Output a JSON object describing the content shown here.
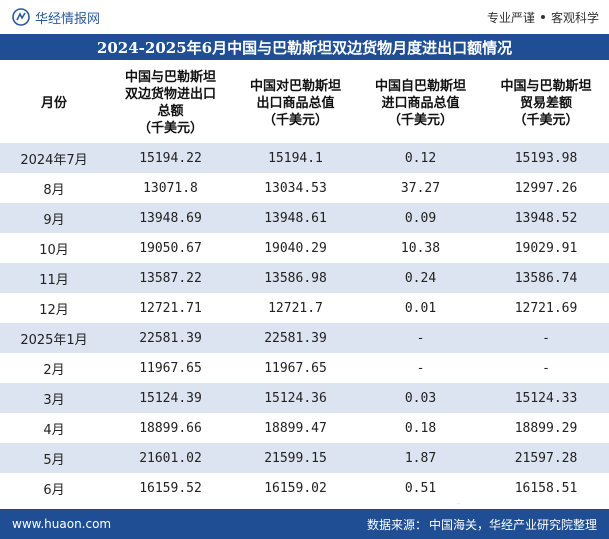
{
  "header": {
    "brand": "华经情报网",
    "slogan_left": "专业严谨",
    "slogan_right": "客观科学"
  },
  "title": "2024-2025年6月中国与巴勒斯坦双边货物月度进出口额情况",
  "table": {
    "columns": [
      "月份",
      "中国与巴勒斯坦\n双边货物进出口\n总额\n（千美元）",
      "中国对巴勒斯坦\n出口商品总值\n（千美元）",
      "中国自巴勒斯坦\n进口商品总值\n（千美元）",
      "中国与巴勒斯坦\n贸易差额\n（千美元）"
    ],
    "rows": [
      [
        "2024年7月",
        "15194.22",
        "15194.1",
        "0.12",
        "15193.98"
      ],
      [
        "8月",
        "13071.8",
        "13034.53",
        "37.27",
        "12997.26"
      ],
      [
        "9月",
        "13948.69",
        "13948.61",
        "0.09",
        "13948.52"
      ],
      [
        "10月",
        "19050.67",
        "19040.29",
        "10.38",
        "19029.91"
      ],
      [
        "11月",
        "13587.22",
        "13586.98",
        "0.24",
        "13586.74"
      ],
      [
        "12月",
        "12721.71",
        "12721.7",
        "0.01",
        "12721.69"
      ],
      [
        "2025年1月",
        "22581.39",
        "22581.39",
        "-",
        "-"
      ],
      [
        "2月",
        "11967.65",
        "11967.65",
        "-",
        "-"
      ],
      [
        "3月",
        "15124.39",
        "15124.36",
        "0.03",
        "15124.33"
      ],
      [
        "4月",
        "18899.66",
        "18899.47",
        "0.18",
        "18899.29"
      ],
      [
        "5月",
        "21601.02",
        "21599.15",
        "1.87",
        "21597.28"
      ],
      [
        "6月",
        "16159.52",
        "16159.02",
        "0.51",
        "16158.51"
      ]
    ]
  },
  "footer": {
    "website": "www.huaon.com",
    "source_label": "数据来源：",
    "source_text": "中国海关，华经产业研究院整理"
  },
  "watermarks": [
    "华经产业研究院",
    "华经产业研究院",
    "华经产业研究院"
  ],
  "colors": {
    "primary": "#1f4e95",
    "row_stripe": "#dbe4f0"
  }
}
